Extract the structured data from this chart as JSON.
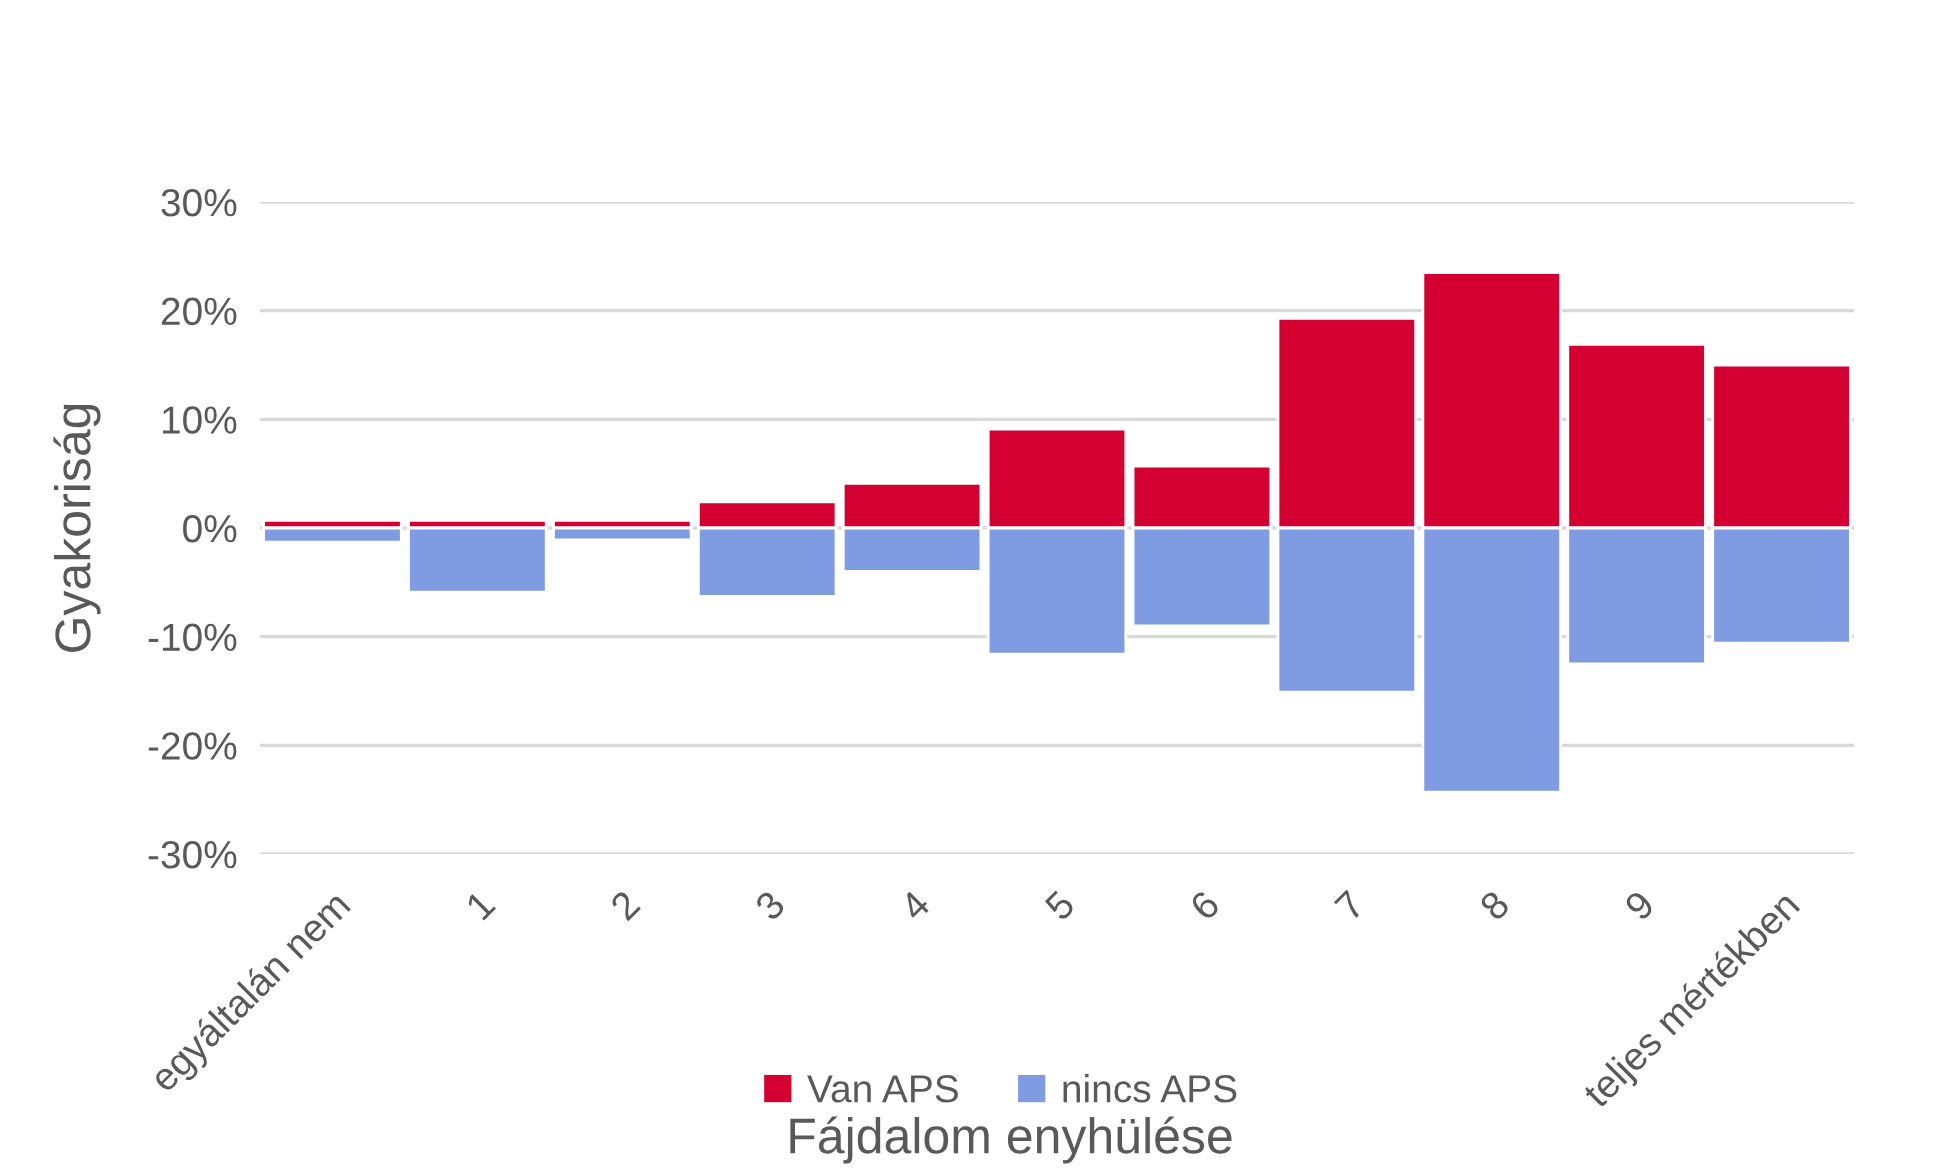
{
  "chart_data": {
    "type": "bar",
    "stacked": true,
    "xlabel": "Fájdalom enyhülése",
    "ylabel": "Gyakoriság",
    "categories": [
      "egyáltalán nem",
      "1",
      "2",
      "3",
      "4",
      "5",
      "6",
      "7",
      "8",
      "9",
      "teljes mértékben"
    ],
    "series": [
      {
        "name": "Van APS",
        "color": "#d50032",
        "values": [
          0.7,
          0.7,
          0.7,
          2.4,
          4.1,
          9.1,
          5.7,
          19.3,
          23.5,
          16.9,
          15.0
        ]
      },
      {
        "name": "nincs APS",
        "color": "#7f9be2",
        "values": [
          -1.3,
          -5.9,
          -1.1,
          -6.3,
          -4.0,
          -11.6,
          -9.0,
          -15.1,
          -24.3,
          -12.5,
          -10.6
        ]
      }
    ],
    "ylim": [
      -30,
      30
    ],
    "yticks": [
      {
        "value": -30,
        "label": "-30%"
      },
      {
        "value": -20,
        "label": "-20%"
      },
      {
        "value": -10,
        "label": "-10%"
      },
      {
        "value": 0,
        "label": "0%"
      },
      {
        "value": 10,
        "label": "10%"
      },
      {
        "value": 20,
        "label": "20%"
      },
      {
        "value": 30,
        "label": "30%"
      }
    ],
    "grid": "y",
    "legend": "bottom"
  }
}
